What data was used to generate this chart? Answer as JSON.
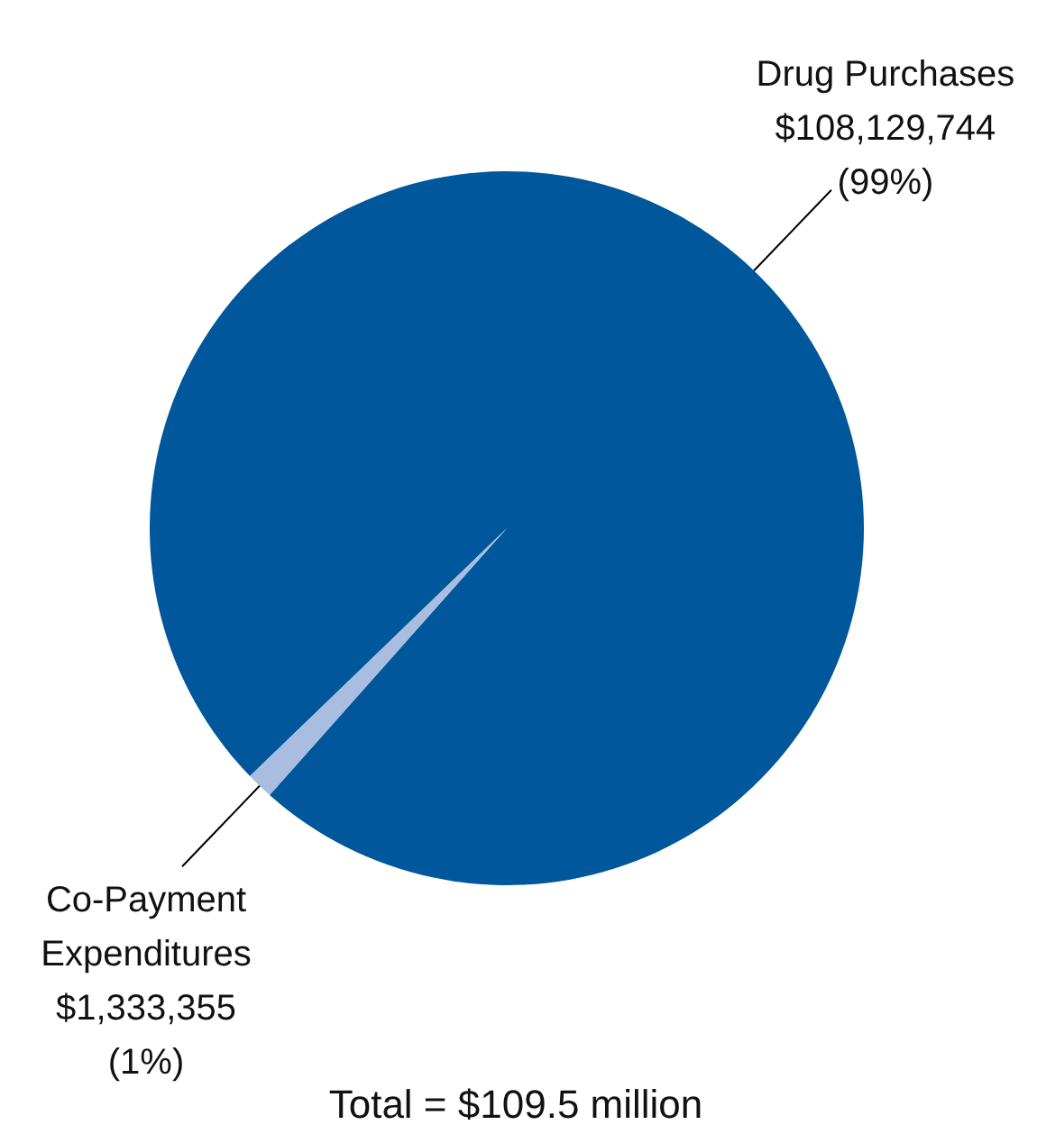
{
  "chart_data": {
    "type": "pie",
    "categories": [
      "Drug Purchases",
      "Co-Payment Expenditures"
    ],
    "values": [
      108129744,
      1333355
    ],
    "colors": [
      "#00579b",
      "#a9bde0"
    ],
    "value_labels": [
      "$108,129,744 (99%)",
      "$1,333,355 (1%)"
    ],
    "annotations": [
      "Total = $109.5 million"
    ]
  }
}
